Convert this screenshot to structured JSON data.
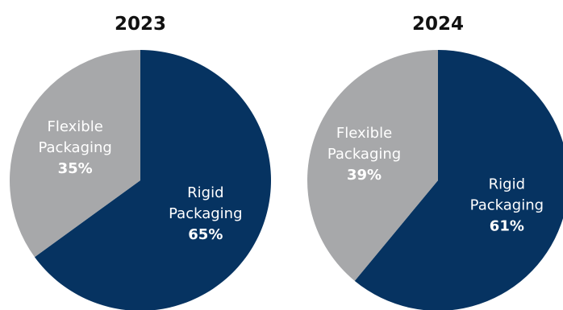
{
  "colors": {
    "rigid": "#063361",
    "flexible": "#a7a8aa",
    "label_on_dark": "#ffffff",
    "label_on_gray": "#ffffff",
    "title": "#111111"
  },
  "chart_data": [
    {
      "type": "pie",
      "title": "2023",
      "start_angle_deg": 0,
      "direction": "clockwise",
      "slices": [
        {
          "label_lines": [
            "Rigid",
            "Packaging"
          ],
          "value": 65,
          "value_label": "65%",
          "color_key": "rigid"
        },
        {
          "label_lines": [
            "Flexible",
            "Packaging"
          ],
          "value": 35,
          "value_label": "35%",
          "color_key": "flexible"
        }
      ]
    },
    {
      "type": "pie",
      "title": "2024",
      "start_angle_deg": 0,
      "direction": "clockwise",
      "slices": [
        {
          "label_lines": [
            "Rigid",
            "Packaging"
          ],
          "value": 61,
          "value_label": "61%",
          "color_key": "rigid"
        },
        {
          "label_lines": [
            "Flexible",
            "Packaging"
          ],
          "value": 39,
          "value_label": "39%",
          "color_key": "flexible"
        }
      ]
    }
  ]
}
